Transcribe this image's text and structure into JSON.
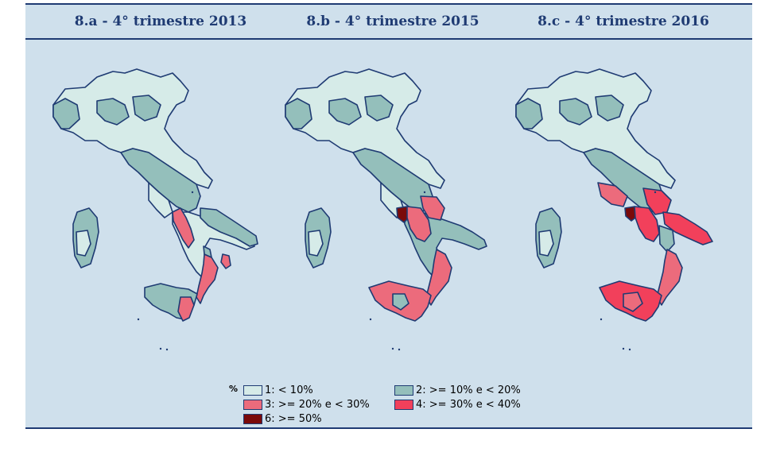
{
  "panels": [
    {
      "title": "8.a - 4° trimestre 2013"
    },
    {
      "title": "8.b - 4° trimestre 2015"
    },
    {
      "title": "8.c - 4° trimestre 2016"
    }
  ],
  "legend": {
    "title": "%",
    "items": [
      {
        "label": "1: <  10%",
        "color": "#d6ebe8"
      },
      {
        "label": "2: >= 10% e < 20%",
        "color": "#94bfbb"
      },
      {
        "label": "3: >= 20% e < 30%",
        "color": "#ec6b7c"
      },
      {
        "label": "4: >= 30% e < 40%",
        "color": "#f2405b"
      },
      {
        "label": "6: >= 50%",
        "color": "#7a0a0a"
      }
    ]
  },
  "colors": {
    "background": "#cfe0ec",
    "border": "#1f3b73",
    "sea": "#cfe0ec"
  }
}
